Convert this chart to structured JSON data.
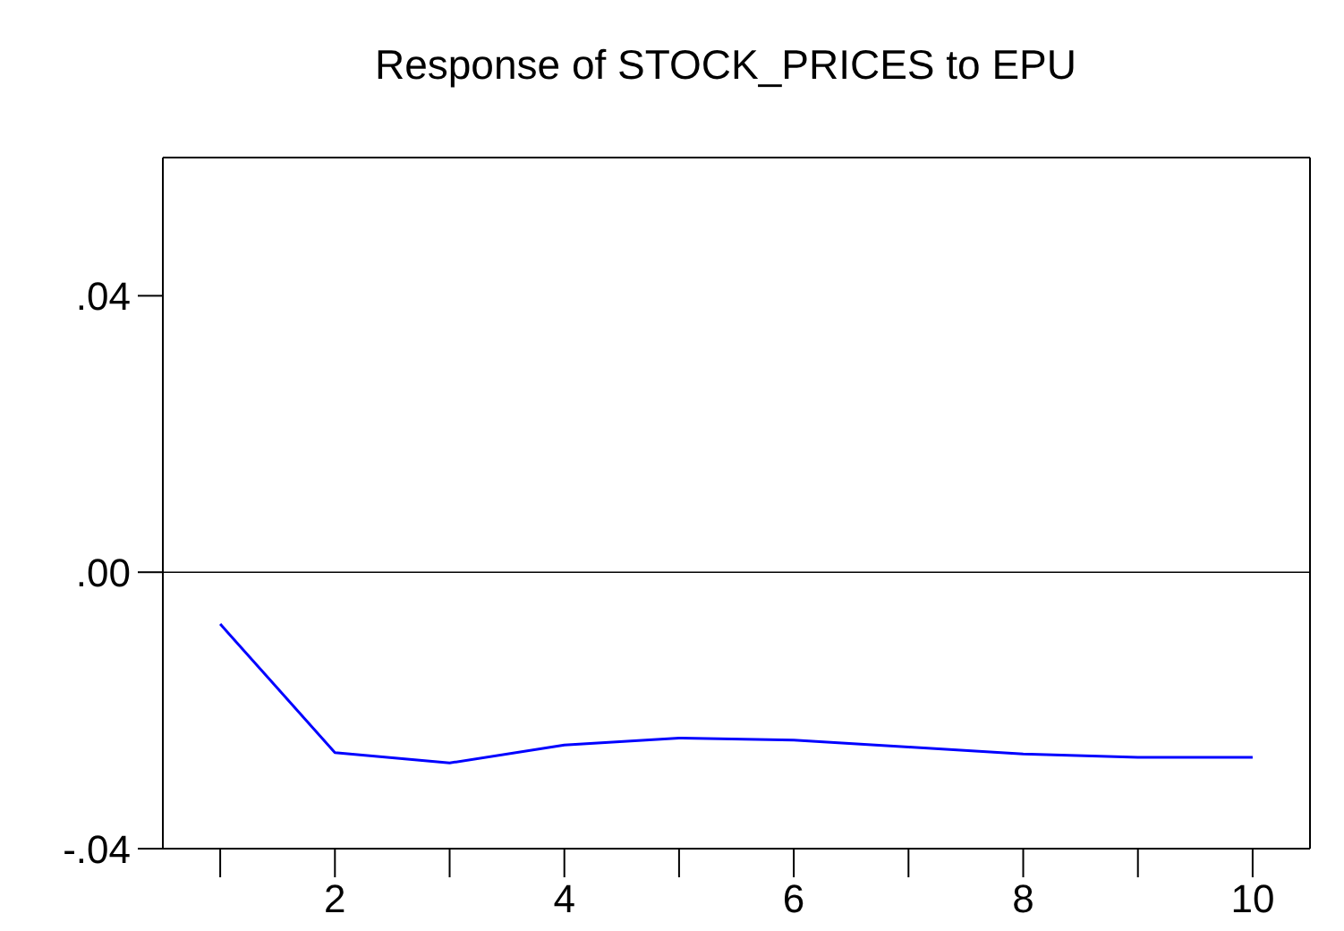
{
  "chart_data": {
    "type": "line",
    "title": "Response of STOCK_PRICES to EPU",
    "x": [
      1,
      2,
      3,
      4,
      5,
      6,
      7,
      8,
      9,
      10
    ],
    "series": [
      {
        "color": "#0000ff",
        "values": [
          -0.0075,
          -0.0261,
          -0.0276,
          -0.025,
          -0.024,
          -0.0243,
          -0.0253,
          -0.0263,
          -0.0268,
          -0.0268
        ]
      }
    ],
    "xlim": [
      0.5,
      10.5
    ],
    "xticks": [
      {
        "value": 1,
        "label": null
      },
      2,
      {
        "value": 3,
        "label": null
      },
      4,
      {
        "value": 5,
        "label": null
      },
      6,
      {
        "value": 7,
        "label": null
      },
      8,
      {
        "value": 9,
        "label": null
      },
      10
    ],
    "ylim": [
      -0.04,
      0.06
    ],
    "yticks": [
      {
        "value": -0.04,
        "label": "-.04"
      },
      {
        "value": 0,
        "label": ".00"
      },
      {
        "value": 0.04,
        "label": ".04"
      }
    ],
    "ref_lines": [
      {
        "axis": "y",
        "value": 0,
        "color": "#000000"
      }
    ],
    "grid": false,
    "legend": false,
    "marker": "none",
    "line_style": "solid"
  }
}
